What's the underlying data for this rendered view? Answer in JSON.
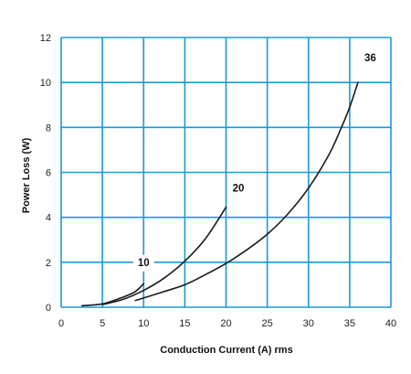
{
  "chart_data": {
    "type": "line",
    "title": "",
    "xlabel": "Conduction Current (A) rms",
    "ylabel": "Power Loss (W)",
    "xlim": [
      0,
      40
    ],
    "ylim": [
      0,
      12
    ],
    "x_ticks": [
      "0",
      "5",
      "10",
      "15",
      "20",
      "25",
      "30",
      "35",
      "40"
    ],
    "y_ticks": [
      "0",
      "2",
      "4",
      "6",
      "8",
      "10",
      "12"
    ],
    "grid": true,
    "legend": "inline labels",
    "colors": {
      "grid": "#1a9ad6",
      "line": "#1a1a1a",
      "background": "#ffffff"
    },
    "series": [
      {
        "name": "10",
        "label_at": [
          10,
          2
        ],
        "x": [
          2.5,
          5,
          7.5,
          9,
          10
        ],
        "y": [
          0.07,
          0.15,
          0.45,
          0.7,
          1.05
        ]
      },
      {
        "name": "20",
        "label_at": [
          21.5,
          5.3
        ],
        "x": [
          5,
          7.5,
          10,
          12.5,
          15,
          17.5,
          20
        ],
        "y": [
          0.12,
          0.35,
          0.75,
          1.3,
          2.05,
          3.05,
          4.45
        ]
      },
      {
        "name": "36",
        "label_at": [
          37.5,
          11.1
        ],
        "x": [
          9,
          12.5,
          15,
          17.5,
          20,
          22.5,
          25,
          27.5,
          30,
          32.5,
          34,
          35,
          36
        ],
        "y": [
          0.3,
          0.7,
          1.0,
          1.45,
          1.95,
          2.55,
          3.25,
          4.15,
          5.3,
          6.8,
          8.0,
          8.9,
          10.0
        ]
      }
    ]
  }
}
